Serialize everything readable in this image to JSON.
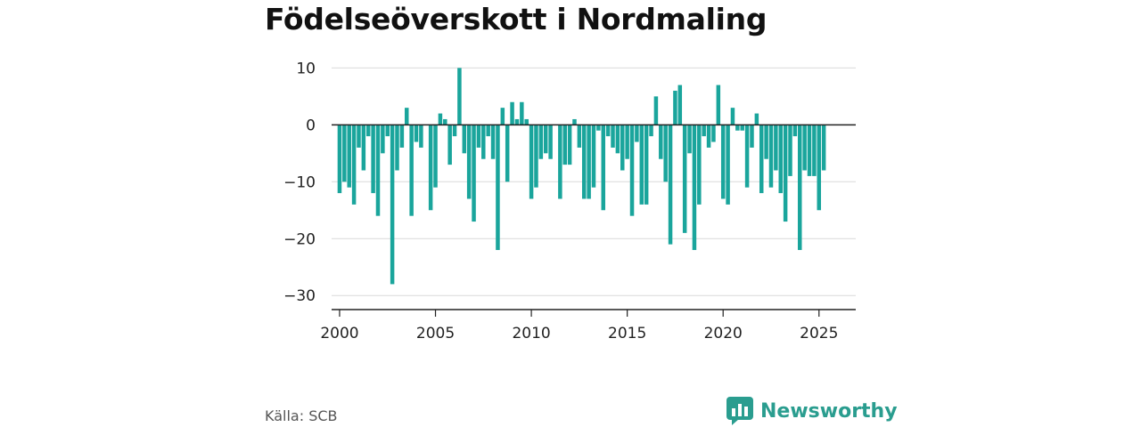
{
  "title": "Födelseöverskott i Nordmaling",
  "source": "Källa: SCB",
  "brand": {
    "name": "Newsworthy",
    "logo_icon": "bar-chart-speech-bubble-icon",
    "color": "#2a9d8f"
  },
  "chart_data": {
    "type": "bar",
    "title": "Födelseöverskott i Nordmaling",
    "xlabel": "",
    "ylabel": "",
    "frequency": "monthly",
    "x_ticks": [
      "2000",
      "2005",
      "2010",
      "2015",
      "2020",
      "2025"
    ],
    "y_ticks": [
      10,
      0,
      -10,
      -20,
      -30
    ],
    "ylim": [
      -32,
      11
    ],
    "xlim": [
      "1999-08",
      "2026-12"
    ],
    "grid": true,
    "bar_color": "#1aa59c",
    "series": [
      {
        "x": [
          "2000-01",
          "2000-04",
          "2000-07",
          "2000-10",
          "2001-01",
          "2001-04",
          "2001-07",
          "2001-10",
          "2002-01",
          "2002-04",
          "2002-07",
          "2002-10",
          "2003-01",
          "2003-04",
          "2003-07",
          "2003-10",
          "2004-01",
          "2004-04",
          "2004-07",
          "2004-10",
          "2005-01",
          "2005-04",
          "2005-07",
          "2005-10",
          "2006-01",
          "2006-04",
          "2006-07",
          "2006-10",
          "2007-01",
          "2007-04",
          "2007-07",
          "2007-10",
          "2008-01",
          "2008-04",
          "2008-07",
          "2008-10",
          "2009-01",
          "2009-04",
          "2009-07",
          "2009-10",
          "2010-01",
          "2010-04",
          "2010-07",
          "2010-10",
          "2011-01",
          "2011-04",
          "2011-07",
          "2011-10",
          "2012-01",
          "2012-04",
          "2012-07",
          "2012-10",
          "2013-01",
          "2013-04",
          "2013-07",
          "2013-10",
          "2014-01",
          "2014-04",
          "2014-07",
          "2014-10",
          "2015-01",
          "2015-04",
          "2015-07",
          "2015-10",
          "2016-01",
          "2016-04",
          "2016-07",
          "2016-10",
          "2017-01",
          "2017-04",
          "2017-07",
          "2017-10",
          "2018-01",
          "2018-04",
          "2018-07",
          "2018-10",
          "2019-01",
          "2019-04",
          "2019-07",
          "2019-10",
          "2020-01",
          "2020-04",
          "2020-07",
          "2020-10",
          "2021-01",
          "2021-04",
          "2021-07",
          "2021-10",
          "2022-01",
          "2022-04",
          "2022-07",
          "2022-10",
          "2023-01",
          "2023-04",
          "2023-07",
          "2023-10",
          "2024-01",
          "2024-04",
          "2024-07",
          "2024-10",
          "2025-01",
          "2025-04"
        ],
        "values": [
          -12,
          -10,
          -11,
          -14,
          -4,
          -8,
          -2,
          -12,
          -16,
          -5,
          -2,
          -28,
          -8,
          -4,
          3,
          -16,
          -3,
          -4,
          0,
          -15,
          -11,
          2,
          1,
          -7,
          -2,
          10,
          -5,
          -13,
          -17,
          -4,
          -6,
          -2,
          -6,
          -22,
          3,
          -10,
          4,
          1,
          4,
          1,
          -13,
          -11,
          -6,
          -5,
          -6,
          0,
          -13,
          -7,
          -7,
          1,
          -4,
          -13,
          -13,
          -11,
          -1,
          -15,
          -2,
          -4,
          -5,
          -8,
          -6,
          -16,
          -3,
          -14,
          -14,
          -2,
          5,
          -6,
          -10,
          -21,
          6,
          7,
          -19,
          -5,
          -22,
          -14,
          -2,
          -4,
          -3,
          7,
          -13,
          -14,
          3,
          -1,
          -1,
          -11,
          -4,
          2,
          -12,
          -6,
          -11,
          -8,
          -12,
          -17,
          -9,
          -2,
          -22,
          -8,
          -9,
          -9,
          -15,
          -8
        ]
      }
    ]
  }
}
